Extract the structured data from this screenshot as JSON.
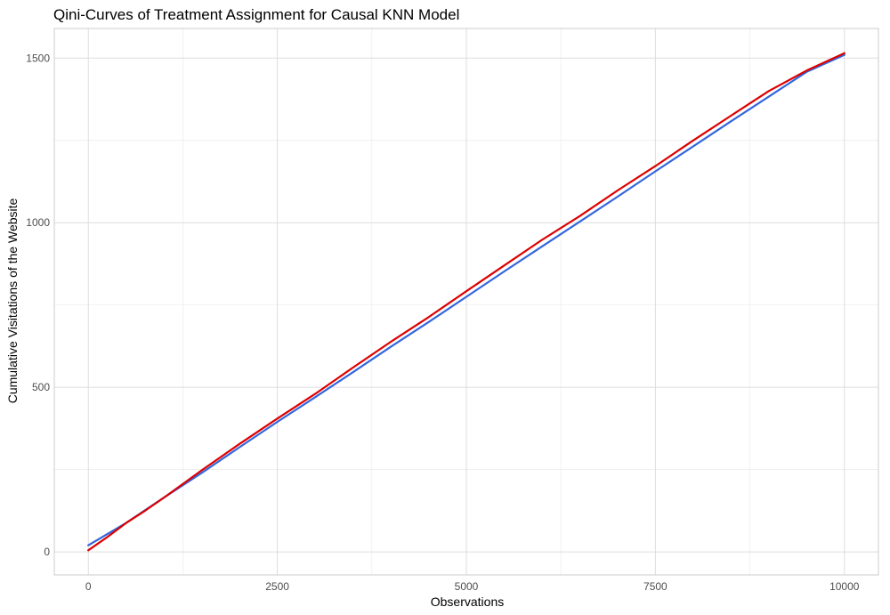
{
  "chart_data": {
    "type": "line",
    "title": "Qini-Curves of Treatment Assignment for Causal KNN Model",
    "xlabel": "Observations",
    "ylabel": "Cumulative Visitations of the Website",
    "xlim": [
      -450,
      10450
    ],
    "ylim": [
      -70,
      1590
    ],
    "x_ticks": [
      0,
      2500,
      5000,
      7500,
      10000
    ],
    "y_ticks": [
      0,
      500,
      1000,
      1500
    ],
    "x_tick_labels": [
      "0",
      "2500",
      "5000",
      "7500",
      "10000"
    ],
    "y_tick_labels": [
      "0",
      "500",
      "1000",
      "1500"
    ],
    "grid": true,
    "legend": "none",
    "series": [
      {
        "color": "#3366dd",
        "x": [
          0,
          500,
          1000,
          1500,
          2000,
          2500,
          3000,
          3500,
          4000,
          4500,
          5000,
          5500,
          6000,
          6500,
          7000,
          7500,
          8000,
          8500,
          9000,
          9500,
          10000
        ],
        "values": [
          20,
          88,
          165,
          240,
          318,
          395,
          470,
          546,
          623,
          698,
          775,
          852,
          928,
          1003,
          1079,
          1156,
          1232,
          1308,
          1383,
          1458,
          1510
        ]
      },
      {
        "color": "#dd0000",
        "x": [
          0,
          250,
          500,
          750,
          1000,
          1500,
          2000,
          2500,
          3000,
          3500,
          4000,
          4500,
          5000,
          5500,
          6000,
          6500,
          7000,
          7500,
          8000,
          8500,
          9000,
          9500,
          10000
        ],
        "values": [
          5,
          45,
          88,
          125,
          165,
          248,
          328,
          405,
          480,
          560,
          638,
          713,
          792,
          870,
          948,
          1020,
          1098,
          1172,
          1250,
          1325,
          1400,
          1462,
          1515
        ]
      }
    ]
  }
}
